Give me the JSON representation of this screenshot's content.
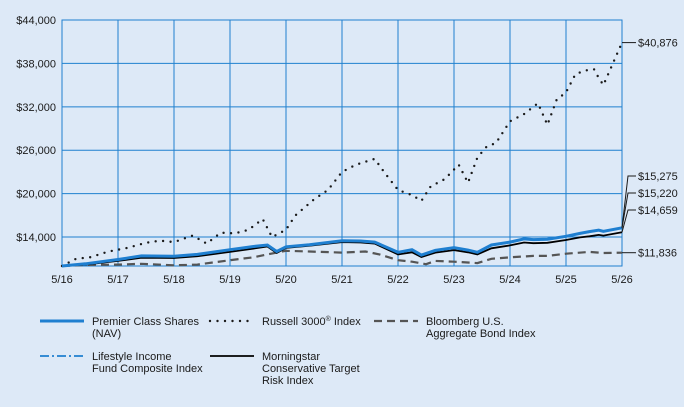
{
  "chart_data": {
    "type": "line",
    "title": "",
    "xlabel": "",
    "ylabel": "",
    "x_ticks": [
      "5/16",
      "5/17",
      "5/18",
      "5/19",
      "5/20",
      "5/21",
      "5/22",
      "5/23",
      "5/24",
      "5/25",
      "5/26"
    ],
    "y_ticks": [
      "$14,000",
      "$20,000",
      "$26,000",
      "$32,000",
      "$38,000",
      "$44,000"
    ],
    "y_tick_values": [
      14000,
      20000,
      26000,
      32000,
      38000,
      44000
    ],
    "ylim": [
      10000,
      44000
    ],
    "xlim": [
      2016.333,
      2026.333
    ],
    "grid": true,
    "legend_position": "bottom",
    "colors": {
      "background": "#dde9f7",
      "plot_bg": "#dde9f7",
      "grid": "#1f80cf",
      "premier": "#1f7fd0",
      "russell": "#1a1a1a",
      "bloomberg": "#555555",
      "lifestyle": "#1f7fd0",
      "morningstar": "#000000"
    },
    "series": [
      {
        "id": "premier",
        "name": "Premier Class Shares (NAV)",
        "legend_lines": [
          "Premier Class Shares",
          "(NAV)"
        ],
        "end_label": "$15,275",
        "x": [
          2016.333,
          2016.75,
          2017.333,
          2017.75,
          2018.333,
          2018.75,
          2019.333,
          2019.75,
          2020.0,
          2020.167,
          2020.333,
          2020.75,
          2021.333,
          2021.667,
          2021.917,
          2022.333,
          2022.583,
          2022.75,
          2023.0,
          2023.333,
          2023.583,
          2023.75,
          2024.0,
          2024.333,
          2024.583,
          2024.75,
          2025.0,
          2025.333,
          2025.583,
          2025.75,
          2025.917,
          2026.0,
          2026.333
        ],
        "y": [
          10000,
          10300,
          10900,
          11400,
          11350,
          11600,
          12250,
          12700,
          12900,
          12000,
          12650,
          12950,
          13500,
          13450,
          13300,
          11900,
          12250,
          11500,
          12150,
          12550,
          12200,
          11900,
          12900,
          13300,
          13750,
          13650,
          13700,
          14100,
          14500,
          14750,
          14950,
          14800,
          15275
        ]
      },
      {
        "id": "russell",
        "name": "Russell 3000® Index",
        "legend_base": "Russell 3000",
        "legend_sup": "®",
        "legend_tail": " Index",
        "end_label": "$40,876",
        "x": [
          2016.333,
          2016.583,
          2016.833,
          2017.167,
          2017.5,
          2017.833,
          2018.083,
          2018.333,
          2018.667,
          2018.917,
          2019.167,
          2019.417,
          2019.667,
          2019.917,
          2020.083,
          2020.333,
          2020.5,
          2020.833,
          2021.083,
          2021.333,
          2021.583,
          2021.917,
          2022.083,
          2022.333,
          2022.583,
          2022.75,
          2022.917,
          2023.167,
          2023.417,
          2023.583,
          2023.75,
          2023.917,
          2024.083,
          2024.333,
          2024.583,
          2024.833,
          2025.0,
          2025.167,
          2025.333,
          2025.5,
          2025.667,
          2025.833,
          2025.917,
          2026.0,
          2026.333
        ],
        "y": [
          10000,
          11000,
          11200,
          12000,
          12500,
          13200,
          13500,
          13300,
          14200,
          13100,
          14600,
          14500,
          15000,
          16500,
          14000,
          15000,
          17000,
          19200,
          20500,
          23000,
          24000,
          24800,
          23000,
          20500,
          19800,
          19000,
          21000,
          22000,
          24000,
          21500,
          25000,
          26500,
          27000,
          30000,
          31000,
          32500,
          29500,
          33000,
          34000,
          36500,
          37000,
          37200,
          36000,
          35000,
          40876
        ]
      },
      {
        "id": "bloomberg",
        "name": "Bloomberg U.S. Aggregate Bond Index",
        "legend_lines": [
          "Bloomberg U.S.",
          "Aggregate Bond Index"
        ],
        "end_label": "$11,836",
        "x": [
          2016.333,
          2016.75,
          2017.333,
          2017.75,
          2018.333,
          2018.75,
          2019.333,
          2019.75,
          2020.0,
          2020.333,
          2020.75,
          2021.333,
          2021.75,
          2022.0,
          2022.333,
          2022.583,
          2022.833,
          2023.0,
          2023.333,
          2023.75,
          2024.0,
          2024.333,
          2024.75,
          2025.0,
          2025.333,
          2025.75,
          2026.0,
          2026.333
        ],
        "y": [
          10000,
          10150,
          10200,
          10300,
          10100,
          10200,
          10800,
          11200,
          11600,
          12100,
          12000,
          11850,
          12000,
          11600,
          10800,
          10600,
          10250,
          10700,
          10600,
          10400,
          11000,
          11200,
          11400,
          11400,
          11700,
          11950,
          11800,
          11836
        ]
      },
      {
        "id": "lifestyle",
        "name": "Lifestyle Income Fund Composite Index",
        "legend_lines": [
          "Lifestyle Income",
          "Fund Composite Index"
        ],
        "end_label": "$15,220",
        "x": [
          2016.333,
          2016.75,
          2017.333,
          2017.75,
          2018.333,
          2018.75,
          2019.333,
          2019.75,
          2020.0,
          2020.167,
          2020.333,
          2020.75,
          2021.333,
          2021.667,
          2021.917,
          2022.333,
          2022.583,
          2022.75,
          2023.0,
          2023.333,
          2023.583,
          2023.75,
          2024.0,
          2024.333,
          2024.583,
          2024.75,
          2025.0,
          2025.333,
          2025.583,
          2025.75,
          2025.917,
          2026.0,
          2026.333
        ],
        "y": [
          10000,
          10250,
          10850,
          11350,
          11300,
          11550,
          12200,
          12650,
          12850,
          11950,
          12600,
          12900,
          13450,
          13400,
          13250,
          11850,
          12200,
          11450,
          12100,
          12500,
          12150,
          11850,
          12850,
          13250,
          13700,
          13600,
          13650,
          14050,
          14450,
          14700,
          14900,
          14750,
          15220
        ]
      },
      {
        "id": "morningstar",
        "name": "Morningstar Conservative Target Risk Index",
        "legend_lines": [
          "Morningstar",
          "Conservative Target",
          "Risk Index"
        ],
        "end_label": "$14,659",
        "x": [
          2016.333,
          2016.75,
          2017.333,
          2017.75,
          2018.333,
          2018.75,
          2019.333,
          2019.75,
          2020.0,
          2020.167,
          2020.333,
          2020.75,
          2021.333,
          2021.667,
          2021.917,
          2022.333,
          2022.583,
          2022.75,
          2023.0,
          2023.333,
          2023.583,
          2023.75,
          2024.0,
          2024.333,
          2024.583,
          2024.75,
          2025.0,
          2025.333,
          2025.583,
          2025.75,
          2025.917,
          2026.0,
          2026.333
        ],
        "y": [
          10000,
          10200,
          10700,
          11150,
          11100,
          11350,
          11950,
          12400,
          12700,
          11800,
          12500,
          12800,
          13300,
          13250,
          13100,
          11600,
          11900,
          11250,
          11850,
          12200,
          11900,
          11600,
          12450,
          12850,
          13250,
          13150,
          13200,
          13600,
          13950,
          14100,
          14300,
          14200,
          14659
        ]
      }
    ]
  }
}
